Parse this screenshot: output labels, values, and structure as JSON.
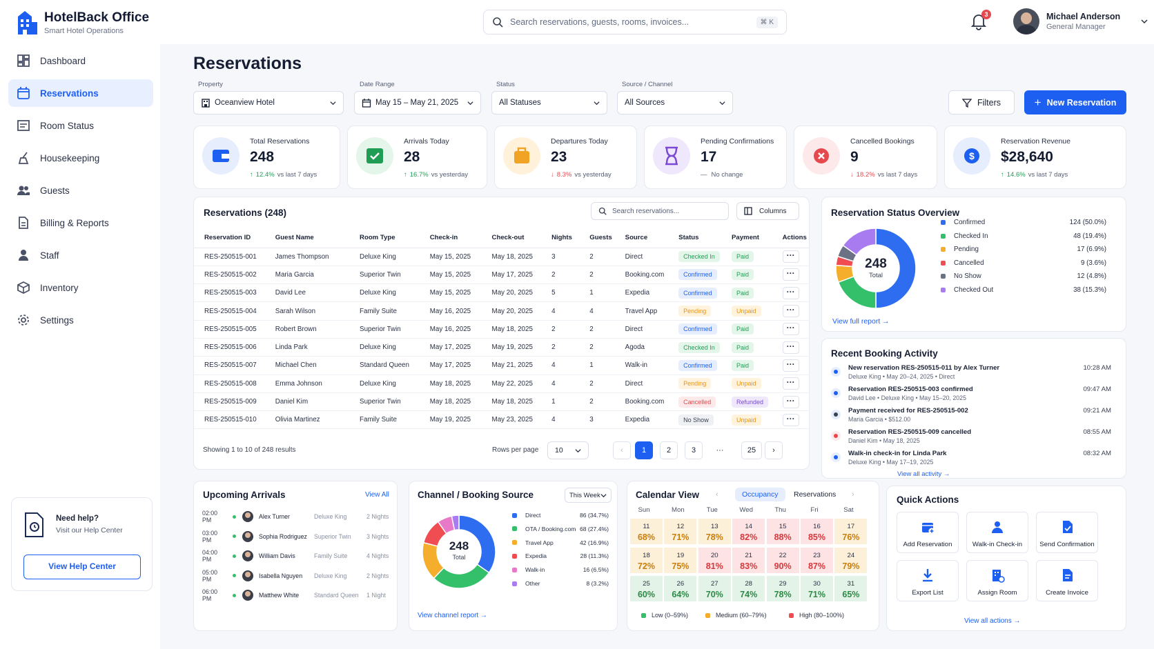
{
  "app": {
    "name": "HotelBack Office",
    "tagline": "Smart Hotel Operations"
  },
  "search": {
    "placeholder": "Search reservations, guests, rooms, invoices...",
    "shortcut": "⌘ K"
  },
  "notifications": {
    "count": "3"
  },
  "user": {
    "name": "Michael Anderson",
    "role": "General Manager"
  },
  "nav": [
    {
      "label": "Dashboard",
      "icon": "dashboard-icon"
    },
    {
      "label": "Reservations",
      "icon": "calendar-icon",
      "active": true
    },
    {
      "label": "Room Status",
      "icon": "room-icon"
    },
    {
      "label": "Housekeeping",
      "icon": "broom-icon"
    },
    {
      "label": "Guests",
      "icon": "users-icon"
    },
    {
      "label": "Billing & Reports",
      "icon": "document-icon"
    },
    {
      "label": "Staff",
      "icon": "person-icon"
    },
    {
      "label": "Inventory",
      "icon": "box-icon"
    },
    {
      "label": "Settings",
      "icon": "gear-icon"
    }
  ],
  "help": {
    "title": "Need help?",
    "subtitle": "Visit our Help Center",
    "button": "View Help Center"
  },
  "page": {
    "title": "Reservations"
  },
  "filters": {
    "property": {
      "label": "Property",
      "value": "Oceanview Hotel"
    },
    "date": {
      "label": "Date Range",
      "value": "May 15 – May 21, 2025"
    },
    "status": {
      "label": "Status",
      "value": "All Statuses"
    },
    "source": {
      "label": "Source / Channel",
      "value": "All Sources"
    },
    "filters_btn": "Filters",
    "new_btn": "New Reservation"
  },
  "kpis": [
    {
      "label": "Total Reservations",
      "value": "248",
      "delta": "12.4%",
      "note": "vs last 7 days",
      "dir": "up",
      "color": "#1d5ff0",
      "bg": "#e6eefe"
    },
    {
      "label": "Arrivals Today",
      "value": "28",
      "delta": "16.7%",
      "note": "vs yesterday",
      "dir": "up",
      "color": "#1f9d55",
      "bg": "#e4f6ea"
    },
    {
      "label": "Departures Today",
      "value": "23",
      "delta": "8.3%",
      "note": "vs yesterday",
      "dir": "down",
      "color": "#f0a325",
      "bg": "#fff1da"
    },
    {
      "label": "Pending Confirmations",
      "value": "17",
      "delta": "—",
      "note": "No change",
      "dir": "none",
      "color": "#7b49d3",
      "bg": "#efe7fc"
    },
    {
      "label": "Cancelled Bookings",
      "value": "9",
      "delta": "18.2%",
      "note": "vs last 7 days",
      "dir": "down",
      "color": "#e5484d",
      "bg": "#fde9ea"
    },
    {
      "label": "Reservation Revenue",
      "value": "$28,640",
      "delta": "14.6%",
      "note": "vs last 7 days",
      "dir": "up",
      "color": "#1d5ff0",
      "bg": "#e6eefe"
    }
  ],
  "reservations": {
    "title": "Reservations (248)",
    "search_placeholder": "Search reservations...",
    "columns_btn": "Columns",
    "headers": [
      "Reservation ID",
      "Guest Name",
      "Room Type",
      "Check-in",
      "Check-out",
      "Nights",
      "Guests",
      "Source",
      "Status",
      "Payment",
      "Actions"
    ],
    "rows": [
      {
        "id": "RES-250515-001",
        "guest": "James Thompson",
        "room": "Deluxe King",
        "in": "May 15, 2025",
        "out": "May 18, 2025",
        "nights": "3",
        "guests": "2",
        "source": "Direct",
        "status": "Checked In",
        "st": "checked",
        "pay": "Paid",
        "pt": "paid"
      },
      {
        "id": "RES-250515-002",
        "guest": "Maria Garcia",
        "room": "Superior Twin",
        "in": "May 15, 2025",
        "out": "May 17, 2025",
        "nights": "2",
        "guests": "2",
        "source": "Booking.com",
        "status": "Confirmed",
        "st": "confirmed",
        "pay": "Paid",
        "pt": "paid"
      },
      {
        "id": "RES-250515-003",
        "guest": "David Lee",
        "room": "Deluxe King",
        "in": "May 15, 2025",
        "out": "May 20, 2025",
        "nights": "5",
        "guests": "1",
        "source": "Expedia",
        "status": "Confirmed",
        "st": "confirmed",
        "pay": "Paid",
        "pt": "paid"
      },
      {
        "id": "RES-250515-004",
        "guest": "Sarah Wilson",
        "room": "Family Suite",
        "in": "May 16, 2025",
        "out": "May 20, 2025",
        "nights": "4",
        "guests": "4",
        "source": "Travel App",
        "status": "Pending",
        "st": "pending",
        "pay": "Unpaid",
        "pt": "unpaid"
      },
      {
        "id": "RES-250515-005",
        "guest": "Robert Brown",
        "room": "Superior Twin",
        "in": "May 16, 2025",
        "out": "May 18, 2025",
        "nights": "2",
        "guests": "2",
        "source": "Direct",
        "status": "Confirmed",
        "st": "confirmed",
        "pay": "Paid",
        "pt": "paid"
      },
      {
        "id": "RES-250515-006",
        "guest": "Linda Park",
        "room": "Deluxe King",
        "in": "May 17, 2025",
        "out": "May 19, 2025",
        "nights": "2",
        "guests": "2",
        "source": "Agoda",
        "status": "Checked In",
        "st": "checked",
        "pay": "Paid",
        "pt": "paid"
      },
      {
        "id": "RES-250515-007",
        "guest": "Michael Chen",
        "room": "Standard Queen",
        "in": "May 17, 2025",
        "out": "May 21, 2025",
        "nights": "4",
        "guests": "1",
        "source": "Walk-in",
        "status": "Confirmed",
        "st": "confirmed",
        "pay": "Paid",
        "pt": "paid"
      },
      {
        "id": "RES-250515-008",
        "guest": "Emma Johnson",
        "room": "Deluxe King",
        "in": "May 18, 2025",
        "out": "May 22, 2025",
        "nights": "4",
        "guests": "2",
        "source": "Direct",
        "status": "Pending",
        "st": "pending",
        "pay": "Unpaid",
        "pt": "unpaid"
      },
      {
        "id": "RES-250515-009",
        "guest": "Daniel Kim",
        "room": "Superior Twin",
        "in": "May 18, 2025",
        "out": "May 18, 2025",
        "nights": "1",
        "guests": "2",
        "source": "Booking.com",
        "status": "Cancelled",
        "st": "cancelled",
        "pay": "Refunded",
        "pt": "refunded"
      },
      {
        "id": "RES-250515-010",
        "guest": "Olivia Martinez",
        "room": "Family Suite",
        "in": "May 19, 2025",
        "out": "May 23, 2025",
        "nights": "4",
        "guests": "3",
        "source": "Expedia",
        "status": "No Show",
        "st": "noshow",
        "pay": "Unpaid",
        "pt": "unpaid"
      }
    ],
    "showing": "Showing 1 to 10 of 248 results",
    "rows_per_page_label": "Rows per page",
    "rows_per_page": "10",
    "pages": [
      "1",
      "2",
      "3",
      "···",
      "25"
    ]
  },
  "status_overview": {
    "title": "Reservation Status Overview",
    "total": "248",
    "total_label": "Total",
    "link": "View full report",
    "items": [
      {
        "name": "Confirmed",
        "value": 124,
        "text": "124 (50.0%)",
        "color": "#2f6df0"
      },
      {
        "name": "Checked In",
        "value": 48,
        "text": "48 (19.4%)",
        "color": "#34c06b"
      },
      {
        "name": "Pending",
        "value": 17,
        "text": "17 (6.9%)",
        "color": "#f4ae2b"
      },
      {
        "name": "Cancelled",
        "value": 9,
        "text": "9 (3.6%)",
        "color": "#ef4d52"
      },
      {
        "name": "No Show",
        "value": 12,
        "text": "12 (4.8%)",
        "color": "#6b7286"
      },
      {
        "name": "Checked Out",
        "value": 38,
        "text": "38 (15.3%)",
        "color": "#a87cf0"
      }
    ]
  },
  "activity": {
    "title": "Recent Booking Activity",
    "link": "View all activity",
    "items": [
      {
        "title": "New reservation RES-250515-011 by Alex Turner",
        "sub": "Deluxe King  •  May 20–24, 2025  •  Direct",
        "time": "10:28 AM",
        "icon": "calendar-plus-icon"
      },
      {
        "title": "Reservation RES-250515-003 confirmed",
        "sub": "David Lee  •  Deluxe King  •  May 15–20, 2025",
        "time": "09:47 AM",
        "icon": "check-icon"
      },
      {
        "title": "Payment received for RES-250515-002",
        "sub": "Maria Garcia  •  $512.00",
        "time": "09:21 AM",
        "icon": "receipt-icon"
      },
      {
        "title": "Reservation RES-250515-009 cancelled",
        "sub": "Daniel Kim  •  May 18, 2025",
        "time": "08:55 AM",
        "icon": "cancel-icon"
      },
      {
        "title": "Walk-in check-in for Linda Park",
        "sub": "Deluxe King  •  May 17–19, 2025",
        "time": "08:32 AM",
        "icon": "users-icon"
      }
    ]
  },
  "arrivals": {
    "title": "Upcoming Arrivals",
    "link": "View All",
    "items": [
      {
        "time": "02:00 PM",
        "name": "Alex Turner",
        "room": "Deluxe King",
        "nights": "2 Nights"
      },
      {
        "time": "03:00 PM",
        "name": "Sophia Rodriguez",
        "room": "Superior Twin",
        "nights": "3 Nights"
      },
      {
        "time": "04:00 PM",
        "name": "William Davis",
        "room": "Family Suite",
        "nights": "4 Nights"
      },
      {
        "time": "05:00 PM",
        "name": "Isabella Nguyen",
        "room": "Deluxe King",
        "nights": "2 Nights"
      },
      {
        "time": "06:00 PM",
        "name": "Matthew White",
        "room": "Standard Queen",
        "nights": "1 Night"
      }
    ]
  },
  "channel": {
    "title": "Channel / Booking Source",
    "period": "This Week",
    "total": "248",
    "total_label": "Total",
    "link": "View channel report",
    "items": [
      {
        "name": "Direct",
        "value": 86,
        "text": "86 (34.7%)",
        "color": "#2f6df0"
      },
      {
        "name": "OTA / Booking.com",
        "value": 68,
        "text": "68 (27.4%)",
        "color": "#34c06b"
      },
      {
        "name": "Travel App",
        "value": 42,
        "text": "42 (16.9%)",
        "color": "#f4ae2b"
      },
      {
        "name": "Expedia",
        "value": 28,
        "text": "28 (11.3%)",
        "color": "#ef4d52"
      },
      {
        "name": "Walk-in",
        "value": 16,
        "text": "16 (6.5%)",
        "color": "#e879c9"
      },
      {
        "name": "Other",
        "value": 8,
        "text": "8 (3.2%)",
        "color": "#a87cf0"
      }
    ]
  },
  "calendar": {
    "title": "Calendar View",
    "tabs": [
      "Occupancy",
      "Reservations"
    ],
    "days": [
      "Sun",
      "Mon",
      "Tue",
      "Wed",
      "Thu",
      "Fri",
      "Sat"
    ],
    "cells": [
      {
        "d": "11",
        "p": "68%",
        "l": "me"
      },
      {
        "d": "12",
        "p": "71%",
        "l": "me"
      },
      {
        "d": "13",
        "p": "78%",
        "l": "me"
      },
      {
        "d": "14",
        "p": "82%",
        "l": "hi"
      },
      {
        "d": "15",
        "p": "88%",
        "l": "hi"
      },
      {
        "d": "16",
        "p": "85%",
        "l": "hi"
      },
      {
        "d": "17",
        "p": "76%",
        "l": "me"
      },
      {
        "d": "18",
        "p": "72%",
        "l": "me"
      },
      {
        "d": "19",
        "p": "75%",
        "l": "me"
      },
      {
        "d": "20",
        "p": "81%",
        "l": "hi"
      },
      {
        "d": "21",
        "p": "83%",
        "l": "hi"
      },
      {
        "d": "22",
        "p": "90%",
        "l": "hi"
      },
      {
        "d": "23",
        "p": "87%",
        "l": "hi"
      },
      {
        "d": "24",
        "p": "79%",
        "l": "me"
      },
      {
        "d": "25",
        "p": "60%",
        "l": "lo"
      },
      {
        "d": "26",
        "p": "64%",
        "l": "lo"
      },
      {
        "d": "27",
        "p": "70%",
        "l": "lo"
      },
      {
        "d": "28",
        "p": "74%",
        "l": "lo"
      },
      {
        "d": "29",
        "p": "78%",
        "l": "lo"
      },
      {
        "d": "30",
        "p": "71%",
        "l": "lo"
      },
      {
        "d": "31",
        "p": "65%",
        "l": "lo"
      }
    ],
    "legend": [
      {
        "label": "Low (0–59%)",
        "color": "#34c06b"
      },
      {
        "label": "Medium (60–79%)",
        "color": "#f4ae2b"
      },
      {
        "label": "High (80–100%)",
        "color": "#ef4d52"
      }
    ]
  },
  "quick": {
    "title": "Quick Actions",
    "link": "View all actions",
    "items": [
      {
        "label": "Add Reservation",
        "icon": "calendar-plus-icon"
      },
      {
        "label": "Walk-in Check-in",
        "icon": "user-plus-icon"
      },
      {
        "label": "Send Confirmation",
        "icon": "document-check-icon"
      },
      {
        "label": "Export List",
        "icon": "download-icon"
      },
      {
        "label": "Assign Room",
        "icon": "building-icon"
      },
      {
        "label": "Create Invoice",
        "icon": "invoice-icon"
      }
    ]
  }
}
